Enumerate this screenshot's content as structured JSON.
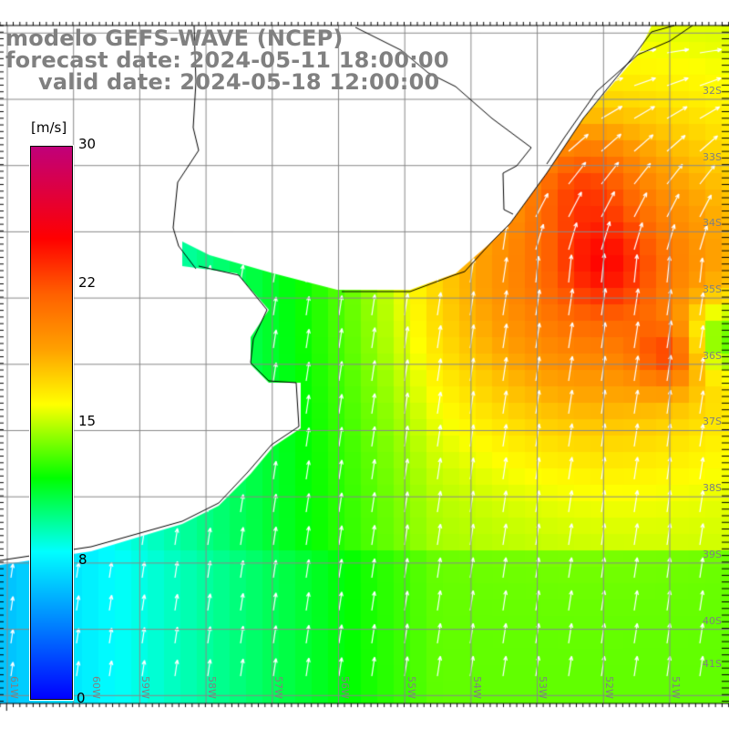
{
  "title": {
    "model": "modelo GEFS-WAVE (NCEP)",
    "forecast": "forecast date: 2024-05-11 18:00:00",
    "valid": "valid date: 2024-05-18 12:00:00"
  },
  "colorbar": {
    "unit": "[m/s]",
    "labels": [
      "30",
      "22",
      "15",
      "8",
      "0"
    ],
    "min": 0,
    "max": 30,
    "stops": [
      {
        "v": 0,
        "c": "#0000ff"
      },
      {
        "v": 4,
        "c": "#0080ff"
      },
      {
        "v": 8,
        "c": "#00ffff"
      },
      {
        "v": 10,
        "c": "#00ff80"
      },
      {
        "v": 12,
        "c": "#00ff00"
      },
      {
        "v": 14,
        "c": "#80ff00"
      },
      {
        "v": 16,
        "c": "#ffff00"
      },
      {
        "v": 19,
        "c": "#ffa000"
      },
      {
        "v": 22,
        "c": "#ff6000"
      },
      {
        "v": 25,
        "c": "#ff0000"
      },
      {
        "v": 30,
        "c": "#c0007a"
      }
    ]
  },
  "lat_labels": [
    "32S",
    "33S",
    "34S",
    "35S",
    "36S",
    "37S",
    "38S",
    "39S",
    "40S",
    "41S"
  ],
  "lon_labels": [
    "61W",
    "60W",
    "59W",
    "58W",
    "57W",
    "56W",
    "55W",
    "54W",
    "53W",
    "52W",
    "51W"
  ],
  "colors": {
    "label_gray": "#808080",
    "grid": "#888888",
    "coast": "#000000",
    "arrow": "#ffffff"
  }
}
